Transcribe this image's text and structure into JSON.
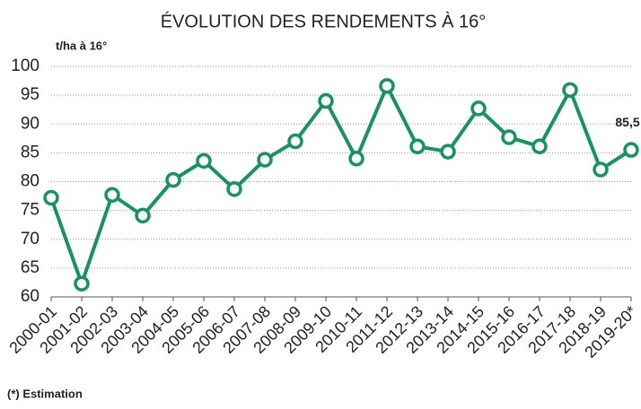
{
  "chart_data": {
    "type": "line",
    "title": "ÉVOLUTION DES RENDEMENTS À 16°",
    "y_label": "t/ha à 16°",
    "footnote": "(*) Estimation",
    "categories": [
      "2000-01",
      "2001-02",
      "2002-03",
      "2003-04",
      "2004-05",
      "2005-06",
      "2006-07",
      "2007-08",
      "2008-09",
      "2009-10",
      "2010-11",
      "2011-12",
      "2012-13",
      "2013-14",
      "2014-15",
      "2015-16",
      "2016-17",
      "2017-18",
      "2018-19",
      "2019-20*"
    ],
    "series": [
      {
        "name": "Rendement",
        "color": "#17935f",
        "values": [
          77.2,
          62.3,
          77.7,
          74.1,
          80.3,
          83.6,
          78.7,
          83.8,
          87.0,
          94.0,
          84.0,
          96.6,
          86.1,
          85.2,
          92.7,
          87.7,
          86.1,
          95.9,
          82.1,
          85.5
        ],
        "value_labels": [
          null,
          null,
          null,
          null,
          null,
          null,
          null,
          null,
          null,
          null,
          null,
          null,
          null,
          null,
          null,
          null,
          null,
          null,
          null,
          "85,5"
        ]
      }
    ],
    "ylim": [
      60,
      100
    ],
    "yticks": [
      60,
      65,
      70,
      75,
      80,
      85,
      90,
      95,
      100
    ],
    "grid": true
  }
}
